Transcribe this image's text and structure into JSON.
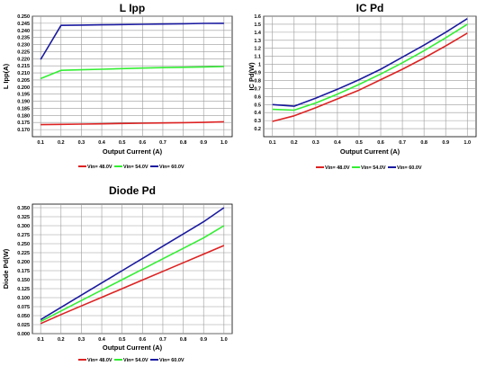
{
  "chart_data": [
    {
      "type": "line",
      "title": "L Ipp",
      "xlabel": "Output Current (A)",
      "ylabel": "L Ipp(A)",
      "x": [
        0.1,
        0.2,
        0.3,
        0.4,
        0.5,
        0.6,
        0.7,
        0.8,
        0.9,
        1.0
      ],
      "xticks": [
        "0.1",
        "0.2",
        "0.3",
        "0.4",
        "0.5",
        "0.6",
        "0.7",
        "0.8",
        "0.9",
        "1.0"
      ],
      "ylim": [
        0.165,
        0.25
      ],
      "yticks": [
        "0.170",
        "0.175",
        "0.180",
        "0.185",
        "0.190",
        "0.195",
        "0.200",
        "0.205",
        "0.210",
        "0.215",
        "0.220",
        "0.225",
        "0.230",
        "0.235",
        "0.240",
        "0.245",
        "0.250"
      ],
      "grid": true,
      "legend_position": "bottom",
      "series": [
        {
          "name": "Vin= 48.0V",
          "color": "#dd2222",
          "values": [
            0.1735,
            0.1737,
            0.1739,
            0.1741,
            0.1743,
            0.1745,
            0.1747,
            0.1749,
            0.1751,
            0.1755
          ]
        },
        {
          "name": "Vin= 54.0V",
          "color": "#33ee33",
          "values": [
            0.206,
            0.2118,
            0.2122,
            0.2126,
            0.213,
            0.2134,
            0.2137,
            0.214,
            0.2142,
            0.2145
          ]
        },
        {
          "name": "Vin= 60.0V",
          "color": "#1a1aa0",
          "values": [
            0.2195,
            0.2435,
            0.2437,
            0.2439,
            0.2441,
            0.2443,
            0.2445,
            0.2447,
            0.2449,
            0.245
          ]
        }
      ]
    },
    {
      "type": "line",
      "title": "IC Pd",
      "xlabel": "Output Current (A)",
      "ylabel": "IC Pd(W)",
      "x": [
        0.1,
        0.2,
        0.3,
        0.4,
        0.5,
        0.6,
        0.7,
        0.8,
        0.9,
        1.0
      ],
      "xticks": [
        "0.1",
        "0.2",
        "0.3",
        "0.4",
        "0.5",
        "0.6",
        "0.7",
        "0.8",
        "0.9",
        "1.0"
      ],
      "ylim": [
        0.1,
        1.6
      ],
      "yticks": [
        "0.2",
        "0.3",
        "0.4",
        "0.5",
        "0.6",
        "0.7",
        "0.8",
        "0.9",
        "1",
        "1.1",
        "1.2",
        "1.3",
        "1.4",
        "1.5",
        "1.6"
      ],
      "grid": true,
      "legend_position": "bottom",
      "series": [
        {
          "name": "Vin= 48.0V",
          "color": "#dd2222",
          "values": [
            0.29,
            0.36,
            0.46,
            0.57,
            0.68,
            0.81,
            0.94,
            1.08,
            1.23,
            1.39
          ]
        },
        {
          "name": "Vin= 54.0V",
          "color": "#33ee33",
          "values": [
            0.44,
            0.43,
            0.52,
            0.63,
            0.75,
            0.88,
            1.02,
            1.17,
            1.33,
            1.5
          ]
        },
        {
          "name": "Vin= 60.0V",
          "color": "#1a1aa0",
          "values": [
            0.5,
            0.48,
            0.58,
            0.69,
            0.81,
            0.94,
            1.09,
            1.24,
            1.4,
            1.57
          ]
        }
      ]
    },
    {
      "type": "line",
      "title": "Diode Pd",
      "xlabel": "Output Current (A)",
      "ylabel": "Diode Pd(W)",
      "x": [
        0.1,
        0.2,
        0.3,
        0.4,
        0.5,
        0.6,
        0.7,
        0.8,
        0.9,
        1.0
      ],
      "xticks": [
        "0.1",
        "0.2",
        "0.3",
        "0.4",
        "0.5",
        "0.6",
        "0.7",
        "0.8",
        "0.9",
        "1.0"
      ],
      "ylim": [
        0.0,
        0.36
      ],
      "yticks": [
        "0.000",
        "0.025",
        "0.050",
        "0.075",
        "0.100",
        "0.125",
        "0.150",
        "0.175",
        "0.200",
        "0.225",
        "0.250",
        "0.275",
        "0.300",
        "0.325",
        "0.350"
      ],
      "grid": true,
      "legend_position": "bottom",
      "series": [
        {
          "name": "Vin= 48.0V",
          "color": "#dd2222",
          "values": [
            0.028,
            0.053,
            0.077,
            0.101,
            0.125,
            0.149,
            0.173,
            0.197,
            0.221,
            0.245
          ]
        },
        {
          "name": "Vin= 54.0V",
          "color": "#33ee33",
          "values": [
            0.034,
            0.063,
            0.092,
            0.121,
            0.15,
            0.179,
            0.208,
            0.237,
            0.266,
            0.3
          ]
        },
        {
          "name": "Vin= 60.0V",
          "color": "#1a1aa0",
          "values": [
            0.039,
            0.073,
            0.107,
            0.141,
            0.175,
            0.209,
            0.243,
            0.277,
            0.311,
            0.35
          ]
        }
      ]
    }
  ]
}
